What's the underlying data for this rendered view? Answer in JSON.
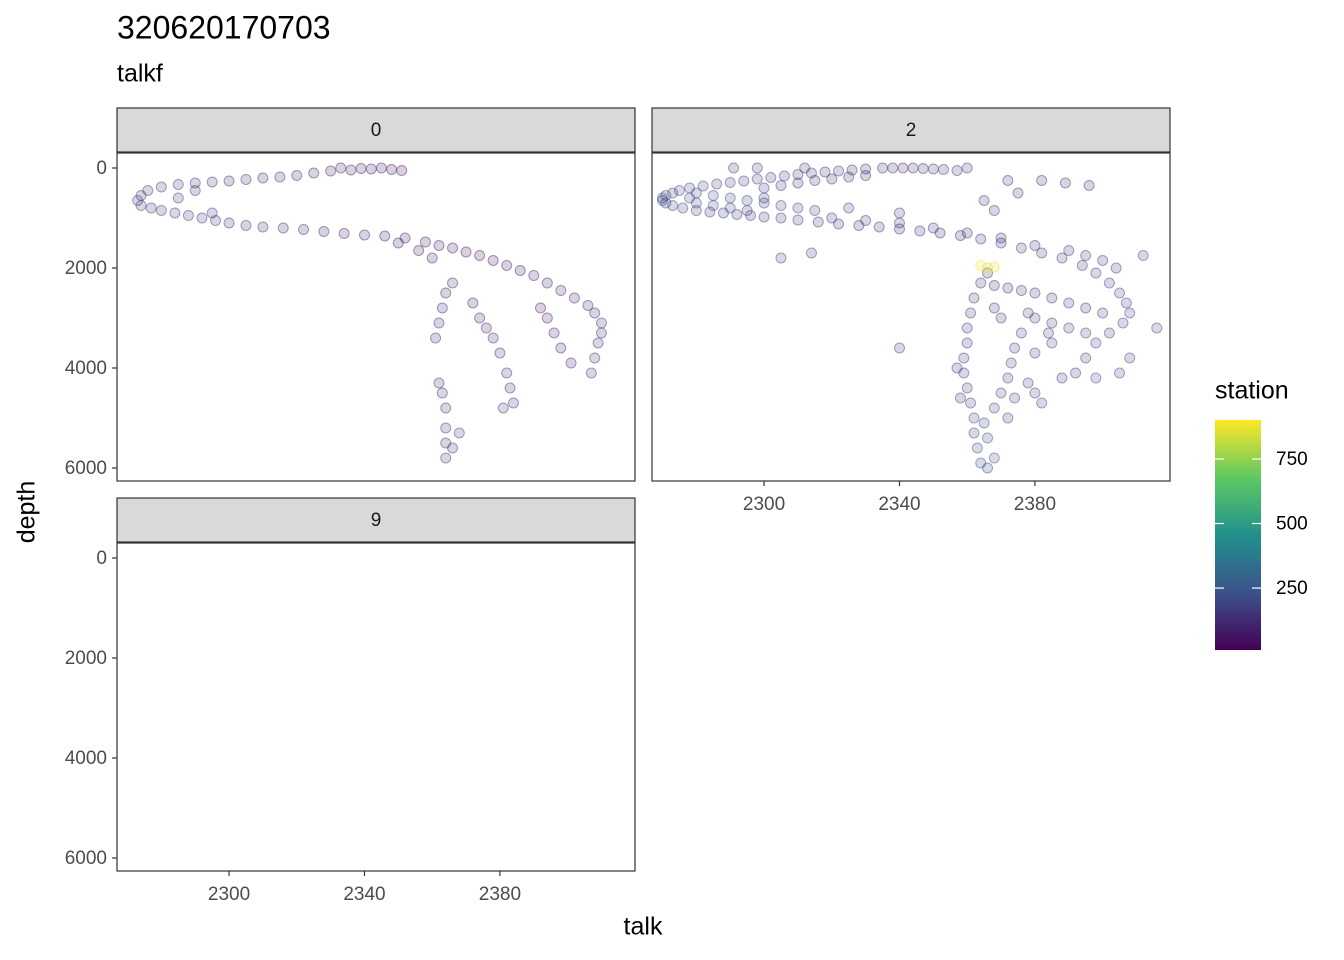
{
  "chart_data": {
    "type": "scatter",
    "title": "320620170703",
    "subtitle": "talkf",
    "x_label": "talk",
    "y_label": "depth",
    "legend_title": "station",
    "xlim": [
      2266.9,
      2419.9
    ],
    "xticks": [
      2300,
      2340,
      2380
    ],
    "ylim": [
      -300,
      6260
    ],
    "y_reversed": true,
    "yticks": [
      0,
      2000,
      4000,
      6000
    ],
    "color_lim": [
      10,
      901
    ],
    "color_ticks": [
      250,
      500,
      750
    ],
    "colormap": [
      "#440154",
      "#3b528b",
      "#21918c",
      "#5ec962",
      "#fde725"
    ],
    "point_alpha": 0.2,
    "facets": [
      {
        "label": "0",
        "x": [
          2351,
          2348,
          2345,
          2342,
          2339,
          2336,
          2333,
          2330,
          2325,
          2320,
          2315,
          2310,
          2305,
          2300,
          2295,
          2290,
          2285,
          2280,
          2276,
          2274,
          2273,
          2274,
          2277,
          2280,
          2284,
          2288,
          2292,
          2296,
          2300,
          2305,
          2310,
          2316,
          2322,
          2328,
          2334,
          2340,
          2346,
          2352,
          2358,
          2362,
          2366,
          2370,
          2374,
          2378,
          2382,
          2386,
          2390,
          2394,
          2398,
          2402,
          2406,
          2408,
          2410,
          2410,
          2409,
          2408,
          2407,
          2366,
          2364,
          2363,
          2362,
          2361,
          2362,
          2363,
          2364,
          2364,
          2364,
          2364,
          2366,
          2368,
          2372,
          2374,
          2376,
          2378,
          2380,
          2382,
          2383,
          2384,
          2381,
          2392,
          2394,
          2396,
          2398,
          2401,
          2350,
          2356,
          2360,
          2290,
          2285,
          2295
        ],
        "y": [
          50,
          30,
          0,
          20,
          10,
          40,
          0,
          60,
          100,
          150,
          180,
          200,
          230,
          260,
          280,
          300,
          330,
          380,
          450,
          550,
          650,
          750,
          800,
          850,
          900,
          950,
          1000,
          1050,
          1100,
          1150,
          1180,
          1200,
          1230,
          1270,
          1310,
          1340,
          1360,
          1400,
          1480,
          1550,
          1600,
          1680,
          1750,
          1850,
          1950,
          2050,
          2150,
          2300,
          2450,
          2600,
          2750,
          2900,
          3100,
          3300,
          3500,
          3800,
          4100,
          2300,
          2500,
          2800,
          3100,
          3400,
          4300,
          4500,
          4800,
          5200,
          5500,
          5800,
          5600,
          5300,
          2700,
          3000,
          3200,
          3400,
          3700,
          4100,
          4400,
          4700,
          4800,
          2800,
          3000,
          3300,
          3600,
          3900,
          1500,
          1650,
          1800,
          450,
          600,
          900
        ],
        "station": [
          60,
          60,
          70,
          70,
          80,
          80,
          90,
          90,
          100,
          100,
          110,
          110,
          120,
          120,
          130,
          130,
          140,
          140,
          150,
          150,
          160,
          160,
          150,
          150,
          140,
          140,
          130,
          130,
          120,
          120,
          110,
          110,
          100,
          100,
          90,
          90,
          80,
          80,
          70,
          70,
          60,
          60,
          70,
          70,
          80,
          80,
          90,
          90,
          100,
          100,
          110,
          110,
          120,
          120,
          130,
          130,
          140,
          100,
          100,
          110,
          110,
          120,
          120,
          130,
          130,
          140,
          140,
          150,
          150,
          160,
          90,
          90,
          100,
          100,
          110,
          110,
          120,
          120,
          130,
          80,
          80,
          90,
          90,
          100,
          70,
          70,
          80,
          150,
          150,
          150
        ]
      },
      {
        "label": "2",
        "x": [
          2335,
          2338,
          2341,
          2344,
          2347,
          2350,
          2353,
          2357,
          2330,
          2326,
          2322,
          2318,
          2314,
          2310,
          2306,
          2302,
          2298,
          2294,
          2290,
          2286,
          2282,
          2278,
          2275,
          2273,
          2271,
          2270,
          2270,
          2271,
          2273,
          2276,
          2280,
          2284,
          2288,
          2292,
          2296,
          2300,
          2305,
          2310,
          2316,
          2322,
          2328,
          2334,
          2340,
          2346,
          2352,
          2358,
          2364,
          2370,
          2376,
          2382,
          2388,
          2394,
          2398,
          2402,
          2405,
          2407,
          2408,
          2406,
          2402,
          2398,
          2395,
          2392,
          2388,
          2280,
          2285,
          2290,
          2295,
          2300,
          2305,
          2310,
          2315,
          2280,
          2278,
          2285,
          2290,
          2295,
          2300,
          2305,
          2310,
          2315,
          2320,
          2325,
          2330,
          2300,
          2320,
          2330,
          2340,
          2350,
          2360,
          2370,
          2380,
          2390,
          2395,
          2400,
          2404,
          2400,
          2395,
          2390,
          2385,
          2380,
          2376,
          2372,
          2368,
          2380,
          2385,
          2390,
          2395,
          2378,
          2384,
          2366,
          2364,
          2362,
          2361,
          2360,
          2360,
          2359,
          2359,
          2360,
          2361,
          2362,
          2362,
          2363,
          2364,
          2366,
          2368,
          2366,
          2365,
          2368,
          2370,
          2372,
          2373,
          2374,
          2376,
          2370,
          2368,
          2372,
          2374,
          2357,
          2358,
          2378,
          2380,
          2382,
          2380,
          2385,
          2364,
          2366,
          2368,
          2291,
          2298,
          2312,
          2360,
          2372,
          2382,
          2389,
          2396,
          2365,
          2368,
          2340,
          2325,
          2305,
          2314,
          2340,
          2412,
          2416,
          2408,
          2398,
          2405,
          2375
        ],
        "y": [
          0,
          0,
          0,
          0,
          10,
          20,
          30,
          50,
          20,
          40,
          60,
          80,
          100,
          130,
          160,
          190,
          220,
          260,
          290,
          320,
          360,
          400,
          450,
          500,
          550,
          600,
          650,
          700,
          750,
          800,
          850,
          880,
          900,
          930,
          950,
          980,
          1000,
          1040,
          1080,
          1120,
          1150,
          1180,
          1220,
          1260,
          1300,
          1350,
          1420,
          1500,
          1600,
          1700,
          1800,
          1950,
          2100,
          2300,
          2500,
          2700,
          2900,
          3100,
          3300,
          3500,
          3800,
          4100,
          4200,
          500,
          550,
          600,
          650,
          700,
          750,
          800,
          850,
          700,
          600,
          750,
          800,
          850,
          400,
          350,
          300,
          250,
          220,
          180,
          150,
          600,
          1000,
          1050,
          1100,
          1200,
          1300,
          1400,
          1550,
          1650,
          1750,
          1850,
          2000,
          2900,
          2800,
          2700,
          2600,
          2500,
          2450,
          2400,
          2350,
          3000,
          3100,
          3200,
          3300,
          2900,
          3300,
          2100,
          2300,
          2600,
          2900,
          3200,
          3500,
          3800,
          4100,
          4400,
          4700,
          5000,
          5300,
          5600,
          5900,
          6000,
          5800,
          5400,
          5100,
          4800,
          4500,
          4200,
          3900,
          3600,
          3300,
          3000,
          2800,
          5000,
          4600,
          4000,
          4600,
          4300,
          4500,
          4700,
          3700,
          3500,
          1950,
          2000,
          1980,
          0,
          0,
          0,
          0,
          250,
          250,
          300,
          350,
          650,
          850,
          900,
          800,
          1800,
          1700,
          3600,
          1750,
          3200,
          3800,
          4200,
          4100,
          500
        ],
        "station": [
          120,
          120,
          120,
          130,
          130,
          130,
          140,
          140,
          120,
          120,
          130,
          130,
          140,
          140,
          150,
          150,
          160,
          160,
          170,
          170,
          180,
          180,
          190,
          190,
          200,
          200,
          190,
          190,
          180,
          180,
          170,
          170,
          160,
          160,
          150,
          150,
          140,
          140,
          130,
          130,
          120,
          120,
          110,
          110,
          120,
          120,
          130,
          130,
          140,
          140,
          150,
          150,
          160,
          160,
          170,
          170,
          180,
          180,
          170,
          170,
          160,
          160,
          150,
          200,
          200,
          190,
          190,
          180,
          180,
          170,
          170,
          210,
          210,
          200,
          200,
          190,
          140,
          140,
          130,
          130,
          120,
          120,
          110,
          180,
          150,
          150,
          140,
          140,
          130,
          130,
          140,
          140,
          150,
          150,
          160,
          160,
          150,
          150,
          140,
          140,
          130,
          130,
          120,
          170,
          170,
          180,
          180,
          160,
          160,
          130,
          130,
          140,
          140,
          150,
          150,
          160,
          160,
          170,
          170,
          180,
          180,
          190,
          190,
          200,
          200,
          190,
          190,
          180,
          180,
          170,
          170,
          160,
          160,
          150,
          150,
          170,
          170,
          150,
          150,
          160,
          160,
          170,
          170,
          180,
          880,
          860,
          870,
          150,
          150,
          140,
          140,
          130,
          130,
          120,
          120,
          140,
          140,
          150,
          150,
          160,
          160,
          170,
          170,
          180,
          180,
          190,
          190,
          130
        ]
      },
      {
        "label": "9",
        "x": [],
        "y": [],
        "station": []
      }
    ]
  }
}
